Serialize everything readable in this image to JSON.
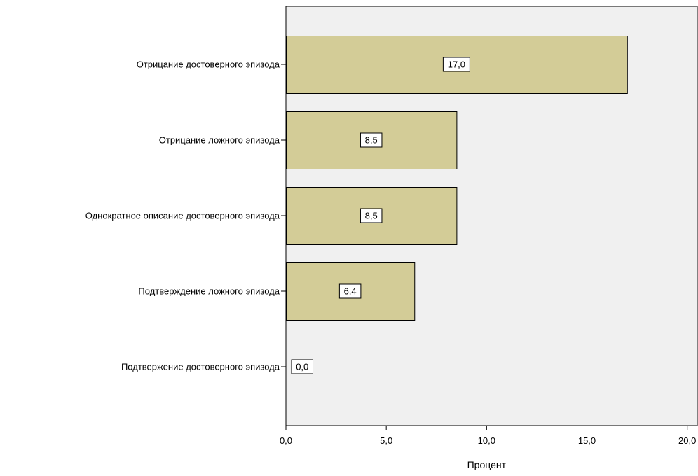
{
  "chart_data": {
    "type": "bar",
    "orientation": "horizontal",
    "categories": [
      "Отрицание  достоверного эпизода",
      "Отрицание  ложного эпизода",
      "Однократное описание  достоверного эпизода",
      "Подтверждение ложного эпизода",
      "Подтвержение достоверного эпизода"
    ],
    "values": [
      17.0,
      8.5,
      8.5,
      6.4,
      0.0
    ],
    "value_labels": [
      "17,0",
      "8,5",
      "8,5",
      "6,4",
      "0,0"
    ],
    "xlabel": "Процент",
    "ylabel": "",
    "xlim": [
      0,
      20.5
    ],
    "x_ticks": [
      0,
      5,
      10,
      15,
      20
    ],
    "x_tick_labels": [
      "0,0",
      "5,0",
      "10,0",
      "15,0",
      "20,0"
    ],
    "grid": false,
    "colors": {
      "bar_fill": "#d3cc97",
      "bar_stroke": "#000000",
      "plot_background": "#f0f0f0",
      "axis": "#000000"
    }
  }
}
